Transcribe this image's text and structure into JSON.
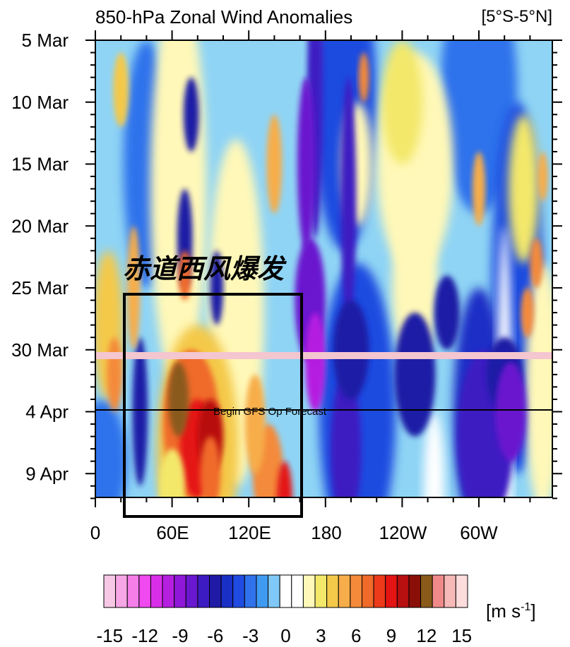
{
  "chart_data": {
    "type": "heatmap",
    "title": "850-hPa Zonal Wind Anomalies",
    "region_label": "[5°S-5°N]",
    "y_ticks": [
      "5 Mar",
      "10 Mar",
      "15 Mar",
      "20 Mar",
      "25 Mar",
      "30 Mar",
      "4 Apr",
      "9 Apr"
    ],
    "x_ticks": [
      "0",
      "60E",
      "120E",
      "180",
      "120W",
      "60W"
    ],
    "x_range_deg_east": [
      0,
      360
    ],
    "y_range": [
      "5 Mar",
      "12 Apr"
    ],
    "colorbar": {
      "unit_label": "[m s",
      "unit_sup": "-1",
      "tick_labels": [
        "-15",
        "-12",
        "-9",
        "-6",
        "-3",
        "0",
        "3",
        "6",
        "9",
        "12",
        "15"
      ],
      "levels": [
        -15,
        -14,
        -13,
        -12,
        -11,
        -10,
        -9,
        -8,
        -7,
        -6,
        -5,
        -4,
        -3,
        -2,
        -1,
        0,
        1,
        2,
        3,
        4,
        5,
        6,
        7,
        8,
        9,
        10,
        11,
        12,
        13,
        14,
        15
      ],
      "colors": [
        "#f7c8e6",
        "#f7a6e6",
        "#f57ee8",
        "#ef49ef",
        "#d92ee8",
        "#b51fe0",
        "#8f18d8",
        "#6a18cf",
        "#3d1bc2",
        "#1f1aa6",
        "#1a2fc6",
        "#1f4be0",
        "#2f72ec",
        "#3f9bf2",
        "#7fc8f7",
        "#ffffff",
        "#ffffff",
        "#fff8b8",
        "#f3e86a",
        "#f4c94a",
        "#f7ad4a",
        "#f48a3a",
        "#f06a2a",
        "#ec3a1a",
        "#e51414",
        "#b80f10",
        "#8a0f08",
        "#8a5a1a",
        "#f08a8a",
        "#f7b8b8",
        "#fddcdc"
      ]
    },
    "annotations": {
      "box_label": "赤道西风爆发",
      "forecast_line_label": "Begin GFS Op Forecast",
      "forecast_start": "4 Apr",
      "highlight_date": "31 Mar",
      "box_lon_range": [
        25,
        160
      ],
      "box_date_range": [
        "26 Mar",
        "13 Apr"
      ]
    },
    "anomaly_features": [
      {
        "label": "westerly burst core",
        "lon": 80,
        "date": "1 Apr",
        "value": 10
      },
      {
        "label": "westerly burst core",
        "lon": 65,
        "date": "29 Mar",
        "value": 13
      },
      {
        "label": "westerly burst core",
        "lon": 148,
        "date": "10 Apr",
        "value": 10
      },
      {
        "label": "easterly maximum",
        "lon": 168,
        "date": "27 Mar",
        "value": -10
      },
      {
        "label": "easterly maximum",
        "lon": 180,
        "date": "22 Mar",
        "value": -9
      },
      {
        "label": "easterly maximum",
        "lon": 260,
        "date": "2 Apr",
        "value": -7
      },
      {
        "label": "easterly maximum",
        "lon": 320,
        "date": "4 Apr",
        "value": -8
      }
    ]
  },
  "colors": {
    "highlight_band": "#f4c6d0",
    "frame": "#000000"
  }
}
